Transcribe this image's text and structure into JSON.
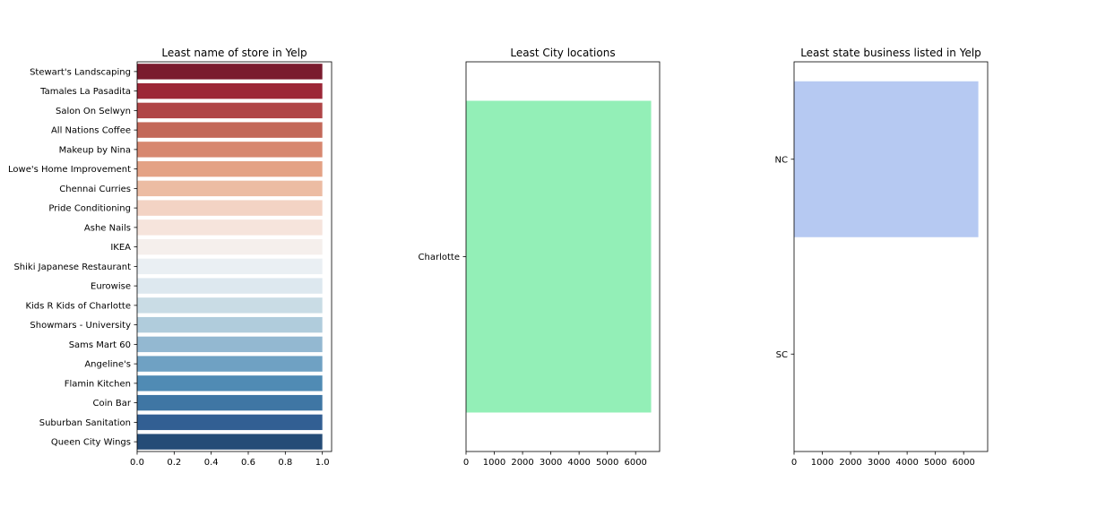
{
  "chart_data": [
    {
      "type": "bar",
      "orientation": "horizontal",
      "title": "Least name of store in Yelp",
      "xlabel": "",
      "ylabel": "",
      "xlim": [
        0,
        1.05
      ],
      "xticks": [
        0.0,
        0.2,
        0.4,
        0.6,
        0.8,
        1.0
      ],
      "xtick_labels": [
        "0.0",
        "0.2",
        "0.4",
        "0.6",
        "0.8",
        "1.0"
      ],
      "categories": [
        "Stewart's Landscaping",
        "Tamales La Pasadita",
        "Salon On Selwyn",
        "All Nations Coffee",
        "Makeup by Nina",
        "Lowe's Home Improvement",
        "Chennai Curries",
        "Pride Conditioning",
        "Ashe Nails",
        "IKEA",
        "Shiki Japanese Restaurant",
        "Eurowise",
        "Kids R Kids of Charlotte",
        "Showmars - University",
        "Sams Mart 60",
        "Angeline's",
        "Flamin Kitchen",
        "Coin Bar",
        "Suburban Sanitation",
        "Queen City Wings"
      ],
      "values": [
        1,
        1,
        1,
        1,
        1,
        1,
        1,
        1,
        1,
        1,
        1,
        1,
        1,
        1,
        1,
        1,
        1,
        1,
        1,
        1
      ],
      "colors": [
        "#7a1b2e",
        "#9c2737",
        "#b04547",
        "#c36859",
        "#d7876f",
        "#e4a285",
        "#ecbca3",
        "#f3d3c4",
        "#f6e4dc",
        "#f5efec",
        "#eaeff3",
        "#dde8ef",
        "#c9dce5",
        "#b0ccdc",
        "#93b8d1",
        "#6fa1c3",
        "#508bb4",
        "#3f76a4",
        "#325f93",
        "#254c77"
      ],
      "grid": false
    },
    {
      "type": "bar",
      "orientation": "horizontal",
      "title": "Least City locations",
      "xlabel": "",
      "ylabel": "",
      "xlim": [
        0,
        6850
      ],
      "xticks": [
        0,
        1000,
        2000,
        3000,
        4000,
        5000,
        6000
      ],
      "xtick_labels": [
        "0",
        "1000",
        "2000",
        "3000",
        "4000",
        "5000",
        "6000"
      ],
      "categories": [
        "Charlotte"
      ],
      "values": [
        6550
      ],
      "colors": [
        "#93efb7"
      ],
      "grid": false
    },
    {
      "type": "bar",
      "orientation": "horizontal",
      "title": "Least state business listed in Yelp",
      "xlabel": "",
      "ylabel": "",
      "xlim": [
        0,
        6850
      ],
      "xticks": [
        0,
        1000,
        2000,
        3000,
        4000,
        5000,
        6000
      ],
      "xtick_labels": [
        "0",
        "1000",
        "2000",
        "3000",
        "4000",
        "5000",
        "6000"
      ],
      "categories": [
        "NC",
        "SC"
      ],
      "values": [
        6520,
        1
      ],
      "colors": [
        "#b6c9f2",
        "#e9b6a4"
      ],
      "grid": false
    }
  ]
}
